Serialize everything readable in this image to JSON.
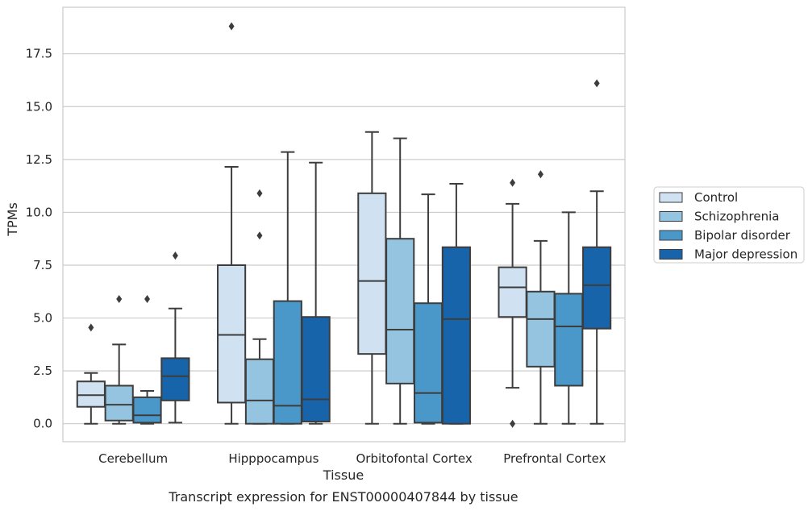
{
  "caption": "Transcript expression for ENST00000407844 by tissue",
  "chart_data": {
    "type": "box",
    "xlabel": "Tissue",
    "ylabel": "TPMs",
    "ylim": [
      -0.85,
      19.7
    ],
    "yticks": [
      0.0,
      2.5,
      5.0,
      7.5,
      10.0,
      12.5,
      15.0,
      17.5
    ],
    "ytick_labels": [
      "0.0",
      "2.5",
      "5.0",
      "7.5",
      "10.0",
      "12.5",
      "15.0",
      "17.5"
    ],
    "grid": "horizontal",
    "legend_position": "right",
    "categories": [
      "Cerebellum",
      "Hipppocampus",
      "Orbitofontal Cortex",
      "Prefrontal Cortex"
    ],
    "series": [
      {
        "name": "Control",
        "color": "#d0e1f2",
        "boxes": [
          {
            "whisker_low": 0.0,
            "q1": 0.8,
            "median": 1.35,
            "q3": 2.0,
            "whisker_high": 2.4,
            "outliers": [
              4.55
            ]
          },
          {
            "whisker_low": 0.0,
            "q1": 1.0,
            "median": 4.2,
            "q3": 7.5,
            "whisker_high": 12.15,
            "outliers": [
              18.8
            ]
          },
          {
            "whisker_low": 0.0,
            "q1": 3.3,
            "median": 6.75,
            "q3": 10.9,
            "whisker_high": 13.8,
            "outliers": []
          },
          {
            "whisker_low": 1.7,
            "q1": 5.05,
            "median": 6.45,
            "q3": 7.4,
            "whisker_high": 10.4,
            "outliers": [
              0.0,
              11.4
            ]
          }
        ]
      },
      {
        "name": "Schizophrenia",
        "color": "#94c4df",
        "boxes": [
          {
            "whisker_low": 0.0,
            "q1": 0.15,
            "median": 0.9,
            "q3": 1.8,
            "whisker_high": 3.75,
            "outliers": [
              5.9
            ]
          },
          {
            "whisker_low": 0.0,
            "q1": 0.0,
            "median": 1.1,
            "q3": 3.05,
            "whisker_high": 4.0,
            "outliers": [
              8.9,
              10.9
            ]
          },
          {
            "whisker_low": 0.0,
            "q1": 1.9,
            "median": 4.45,
            "q3": 8.75,
            "whisker_high": 13.5,
            "outliers": []
          },
          {
            "whisker_low": 0.0,
            "q1": 2.7,
            "median": 4.95,
            "q3": 6.25,
            "whisker_high": 8.65,
            "outliers": [
              11.8
            ]
          }
        ]
      },
      {
        "name": "Bipolar disorder",
        "color": "#4a98c9",
        "boxes": [
          {
            "whisker_low": 0.0,
            "q1": 0.05,
            "median": 0.4,
            "q3": 1.25,
            "whisker_high": 1.55,
            "outliers": [
              5.9
            ]
          },
          {
            "whisker_low": 0.0,
            "q1": 0.0,
            "median": 0.85,
            "q3": 5.8,
            "whisker_high": 12.85,
            "outliers": []
          },
          {
            "whisker_low": 0.0,
            "q1": 0.05,
            "median": 1.45,
            "q3": 5.7,
            "whisker_high": 10.85,
            "outliers": []
          },
          {
            "whisker_low": 0.0,
            "q1": 1.8,
            "median": 4.6,
            "q3": 6.15,
            "whisker_high": 10.0,
            "outliers": []
          }
        ]
      },
      {
        "name": "Major depression",
        "color": "#1764ab",
        "boxes": [
          {
            "whisker_low": 0.05,
            "q1": 1.1,
            "median": 2.25,
            "q3": 3.1,
            "whisker_high": 5.45,
            "outliers": [
              7.95
            ]
          },
          {
            "whisker_low": 0.0,
            "q1": 0.1,
            "median": 1.15,
            "q3": 5.05,
            "whisker_high": 12.35,
            "outliers": []
          },
          {
            "whisker_low": 0.0,
            "q1": 0.0,
            "median": 4.95,
            "q3": 8.35,
            "whisker_high": 11.35,
            "outliers": []
          },
          {
            "whisker_low": 0.0,
            "q1": 4.5,
            "median": 6.55,
            "q3": 8.35,
            "whisker_high": 11.0,
            "outliers": [
              16.1
            ]
          }
        ]
      }
    ]
  }
}
